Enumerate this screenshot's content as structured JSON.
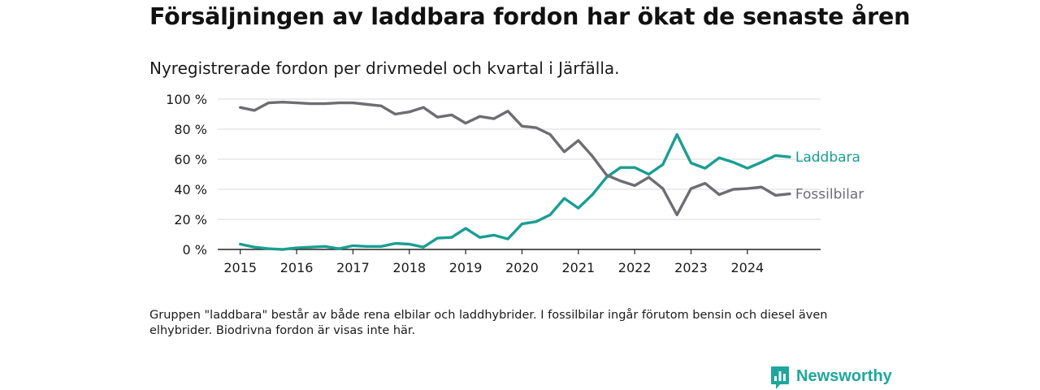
{
  "title": "Försäljningen av laddbara fordon har ökat de senaste åren",
  "subtitle": "Nyregistrerade fordon per drivmedel och kvartal i Järfälla.",
  "footnote": "Gruppen \"laddbara\" består av både rena elbilar och laddhybrider. I fossilbilar ingår förutom bensin och diesel även elhybrider. Biodrivna fordon är visas inte här.",
  "brand": {
    "name": "Newsworthy",
    "icon": "newsworthy-logo-icon",
    "color": "#1ea79c"
  },
  "chart_data": {
    "type": "line",
    "title": "Försäljningen av laddbara fordon har ökat de senaste åren",
    "subtitle": "Nyregistrerade fordon per drivmedel och kvartal i Järfälla.",
    "xlabel": "",
    "ylabel": "",
    "x_unit": "year-quarter",
    "x_start": 2015.0,
    "x_step": 0.25,
    "xlim": [
      2014.6,
      2025.3
    ],
    "ylim": [
      0,
      100
    ],
    "y_ticks": [
      0,
      20,
      40,
      60,
      80,
      100
    ],
    "y_tick_labels": [
      "0 %",
      "20 %",
      "40 %",
      "60 %",
      "80 %",
      "100 %"
    ],
    "x_ticks": [
      2015,
      2016,
      2017,
      2018,
      2019,
      2020,
      2021,
      2022,
      2023,
      2024
    ],
    "x_tick_labels": [
      "2015",
      "2016",
      "2017",
      "2018",
      "2019",
      "2020",
      "2021",
      "2022",
      "2023",
      "2024"
    ],
    "grid": true,
    "legend": "inline labels at the right end of each line",
    "series": [
      {
        "name": "Laddbara",
        "color": "#1a9e93",
        "values": [
          3.5,
          1.5,
          0.5,
          0,
          1,
          1.5,
          2,
          0.5,
          2.5,
          2,
          2,
          4,
          3.5,
          1.5,
          7.5,
          8,
          14,
          8,
          9.5,
          7,
          17,
          18.5,
          23,
          34,
          27.5,
          36.5,
          48,
          54.5,
          54.5,
          50,
          56.5,
          76.5,
          57.5,
          54,
          61,
          58,
          54,
          58,
          62.5,
          61.5
        ]
      },
      {
        "name": "Fossilbilar",
        "color": "#6d6d72",
        "values": [
          94.5,
          92.5,
          97.5,
          98,
          97.5,
          97,
          97,
          97.5,
          97.5,
          96.5,
          95.5,
          90,
          91.5,
          94.5,
          88,
          89.5,
          84,
          88.5,
          87,
          92,
          82,
          81,
          76.5,
          65,
          72.5,
          62,
          49.5,
          45.5,
          42.5,
          48,
          40.5,
          23,
          40.5,
          44,
          36.5,
          40,
          40.5,
          41.5,
          36,
          37
        ]
      }
    ]
  }
}
